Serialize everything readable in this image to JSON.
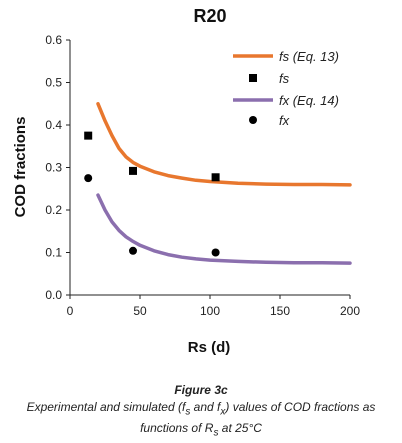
{
  "chart_data": {
    "type": "line",
    "title": "R20",
    "xlabel": "Rs (d)",
    "ylabel": "COD  fractions",
    "xlim": [
      0,
      200
    ],
    "ylim": [
      0,
      0.6
    ],
    "xticks": [
      0,
      50,
      100,
      150,
      200
    ],
    "yticks": [
      0.0,
      0.1,
      0.2,
      0.3,
      0.4,
      0.5,
      0.6
    ],
    "ytick_labels": [
      "0.0",
      "0.1",
      "0.2",
      "0.3",
      "0.4",
      "0.5",
      "0.6"
    ],
    "grid": false,
    "legend_position": "top-right",
    "series": [
      {
        "name": "fs (Eq. 13)",
        "kind": "line",
        "color": "#e8772e",
        "x": [
          20,
          25,
          30,
          35,
          40,
          45,
          50,
          60,
          70,
          80,
          90,
          100,
          120,
          140,
          160,
          180,
          200
        ],
        "y": [
          0.45,
          0.41,
          0.375,
          0.345,
          0.325,
          0.312,
          0.303,
          0.29,
          0.281,
          0.275,
          0.27,
          0.267,
          0.263,
          0.261,
          0.26,
          0.26,
          0.259
        ]
      },
      {
        "name": "fs",
        "kind": "marker",
        "marker": "square",
        "color": "#000000",
        "x": [
          13,
          45,
          104
        ],
        "y": [
          0.375,
          0.292,
          0.277
        ]
      },
      {
        "name": "fx (Eq. 14)",
        "kind": "line",
        "color": "#8b6fae",
        "x": [
          20,
          25,
          30,
          35,
          40,
          45,
          50,
          60,
          70,
          80,
          90,
          100,
          120,
          140,
          160,
          180,
          200
        ],
        "y": [
          0.235,
          0.2,
          0.172,
          0.152,
          0.137,
          0.126,
          0.117,
          0.104,
          0.095,
          0.089,
          0.085,
          0.082,
          0.079,
          0.077,
          0.076,
          0.076,
          0.075
        ]
      },
      {
        "name": "fx",
        "kind": "marker",
        "marker": "circle",
        "color": "#000000",
        "x": [
          13,
          45,
          104
        ],
        "y": [
          0.275,
          0.104,
          0.1
        ]
      }
    ]
  },
  "caption": {
    "title": "Figure 3c",
    "line1_a": "Experimental and simulated (f",
    "line1_s": "s",
    "line1_b": " and f",
    "line1_x": "x",
    "line1_c": ") values of COD fractions as",
    "line2_a": "functions of R",
    "line2_s": "s",
    "line2_b": " at 25°C"
  }
}
